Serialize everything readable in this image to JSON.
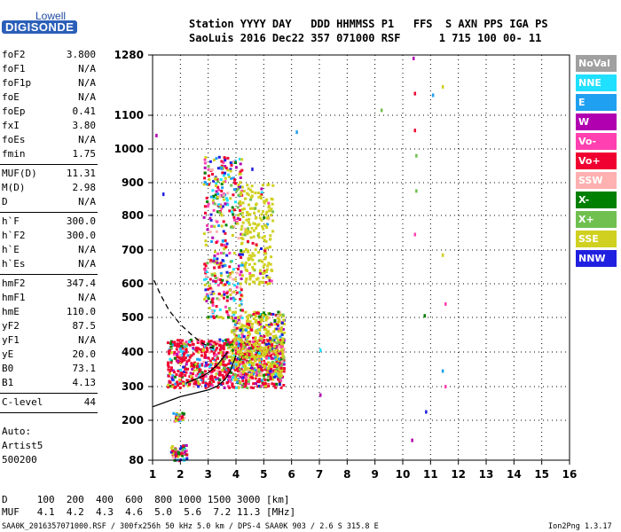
{
  "logo": {
    "top": "Lowell",
    "main": "DIGISONDE"
  },
  "header": {
    "line1": "Station YYYY DAY   DDD HHMMSS P1   FFS  S AXN PPS IGA PS",
    "line2": "SaoLuis 2016 Dec22 357 071000 RSF      1 715 100 00- 11"
  },
  "params": [
    {
      "name": "foF2",
      "value": "3.800"
    },
    {
      "name": "foF1",
      "value": "N/A"
    },
    {
      "name": "foF1p",
      "value": "N/A"
    },
    {
      "name": "foE",
      "value": "N/A"
    },
    {
      "name": "foEp",
      "value": "0.41"
    },
    {
      "name": "fxI",
      "value": "3.80"
    },
    {
      "name": "foEs",
      "value": "N/A"
    },
    {
      "name": "fmin",
      "value": "1.75"
    },
    {
      "name": "MUF(D)",
      "value": "11.31"
    },
    {
      "name": "M(D)",
      "value": "2.98"
    },
    {
      "name": "D",
      "value": "N/A"
    },
    {
      "name": "h`F",
      "value": "300.0"
    },
    {
      "name": "h`F2",
      "value": "300.0"
    },
    {
      "name": "h`E",
      "value": "N/A"
    },
    {
      "name": "h`Es",
      "value": "N/A"
    },
    {
      "name": "hmF2",
      "value": "347.4"
    },
    {
      "name": "hmF1",
      "value": "N/A"
    },
    {
      "name": "hmE",
      "value": "110.0"
    },
    {
      "name": "yF2",
      "value": "87.5"
    },
    {
      "name": "yF1",
      "value": "N/A"
    },
    {
      "name": "yE",
      "value": "20.0"
    },
    {
      "name": "B0",
      "value": "73.1"
    },
    {
      "name": "B1",
      "value": "4.13"
    },
    {
      "name": "C-level",
      "value": "44"
    }
  ],
  "auto": [
    "Auto:",
    "Artist5",
    "500200"
  ],
  "legend": [
    {
      "label": "NoVal",
      "color": "#a0a0a0",
      "text": "#ffffff"
    },
    {
      "label": "NNE",
      "color": "#20e0ff",
      "text": "#ffffff"
    },
    {
      "label": "E",
      "color": "#20a0f0",
      "text": "#ffffff"
    },
    {
      "label": "W",
      "color": "#b000b0",
      "text": "#ffffff"
    },
    {
      "label": "Vo-",
      "color": "#ff40b0",
      "text": "#ffffff"
    },
    {
      "label": "Vo+",
      "color": "#f00030",
      "text": "#ffffff"
    },
    {
      "label": "SSW",
      "color": "#ffb0b0",
      "text": "#ffffff"
    },
    {
      "label": "X-",
      "color": "#008000",
      "text": "#ffffff"
    },
    {
      "label": "X+",
      "color": "#70c050",
      "text": "#ffffff"
    },
    {
      "label": "SSE",
      "color": "#d0d020",
      "text": "#ffffff"
    },
    {
      "label": "NNW",
      "color": "#2020e0",
      "text": "#ffffff"
    }
  ],
  "footer": {
    "d_row": "D     100  200  400  600  800 1000 1500 3000 [km]",
    "muf_row": "MUF   4.1  4.2  4.3  4.6  5.0  5.6  7.2 11.3 [MHz]",
    "file_line": "SAA0K_2016357071000.RSF / 300fx256h 50 kHz 5.0 km / DPS-4 SAA0K 903 / 2.6 S 315.8 E",
    "version": "Ion2Png 1.3.17"
  },
  "chart_data": {
    "type": "scatter",
    "x_ticks": [
      1,
      2,
      3,
      4,
      5,
      6,
      7,
      8,
      9,
      10,
      11,
      12,
      13,
      14,
      15,
      16
    ],
    "y_ticks": [
      80,
      200,
      300,
      400,
      500,
      600,
      700,
      800,
      900,
      1000,
      1100,
      1280
    ],
    "xlim": [
      1,
      16
    ],
    "ylim": [
      80,
      1280
    ],
    "grid": true,
    "legend_position": "right",
    "curves": [
      {
        "style": "solid",
        "x": [
          1.0,
          1.5,
          2.0,
          2.5,
          3.0,
          3.3,
          3.6,
          3.8,
          4.0
        ],
        "y": [
          240,
          255,
          270,
          280,
          290,
          300,
          320,
          345,
          390
        ]
      },
      {
        "style": "solid",
        "x": [
          2.2,
          2.5,
          2.8,
          3.0,
          3.3,
          3.5,
          3.7
        ],
        "y": [
          310,
          320,
          330,
          340,
          360,
          380,
          400
        ]
      },
      {
        "style": "dashed",
        "x": [
          1.05,
          1.3,
          1.6,
          2.0,
          2.4,
          2.8,
          3.2
        ],
        "y": [
          610,
          565,
          520,
          480,
          450,
          425,
          410
        ]
      }
    ],
    "clusters": [
      {
        "x": [
          1.5,
          5.7
        ],
        "y": [
          300,
          440
        ],
        "n": 900
      },
      {
        "x": [
          3.8,
          5.7
        ],
        "y": [
          330,
          520
        ],
        "n": 500
      },
      {
        "x": [
          2.8,
          4.2
        ],
        "y": [
          500,
          980
        ],
        "n": 400
      },
      {
        "x": [
          4.1,
          5.3
        ],
        "y": [
          600,
          900
        ],
        "n": 220
      },
      {
        "x": [
          1.6,
          2.2
        ],
        "y": [
          82,
          130
        ],
        "n": 60
      },
      {
        "x": [
          1.7,
          2.1
        ],
        "y": [
          200,
          225
        ],
        "n": 25
      }
    ],
    "isolated_points": [
      {
        "x": 1.35,
        "y": 870,
        "c": "#2020e0"
      },
      {
        "x": 1.1,
        "y": 1045,
        "c": "#b000b0"
      },
      {
        "x": 4.55,
        "y": 945,
        "c": "#2020e0"
      },
      {
        "x": 6.15,
        "y": 1055,
        "c": "#20a0f0"
      },
      {
        "x": 7.0,
        "y": 280,
        "c": "#b000b0"
      },
      {
        "x": 7.0,
        "y": 410,
        "c": "#20e0ff"
      },
      {
        "x": 9.2,
        "y": 1120,
        "c": "#70c050"
      },
      {
        "x": 10.35,
        "y": 1275,
        "c": "#b000b0"
      },
      {
        "x": 10.4,
        "y": 1170,
        "c": "#f00030"
      },
      {
        "x": 10.4,
        "y": 1060,
        "c": "#f00030"
      },
      {
        "x": 10.45,
        "y": 985,
        "c": "#70c050"
      },
      {
        "x": 10.45,
        "y": 880,
        "c": "#70c050"
      },
      {
        "x": 10.4,
        "y": 750,
        "c": "#ff40b0"
      },
      {
        "x": 10.3,
        "y": 145,
        "c": "#b000b0"
      },
      {
        "x": 10.75,
        "y": 510,
        "c": "#008000"
      },
      {
        "x": 10.8,
        "y": 230,
        "c": "#2020e0"
      },
      {
        "x": 11.05,
        "y": 1165,
        "c": "#20a0f0"
      },
      {
        "x": 11.4,
        "y": 1190,
        "c": "#d0d020"
      },
      {
        "x": 11.4,
        "y": 690,
        "c": "#d0d020"
      },
      {
        "x": 11.4,
        "y": 350,
        "c": "#20a0f0"
      },
      {
        "x": 11.5,
        "y": 545,
        "c": "#ff40b0"
      },
      {
        "x": 11.5,
        "y": 305,
        "c": "#ff40b0"
      }
    ]
  }
}
